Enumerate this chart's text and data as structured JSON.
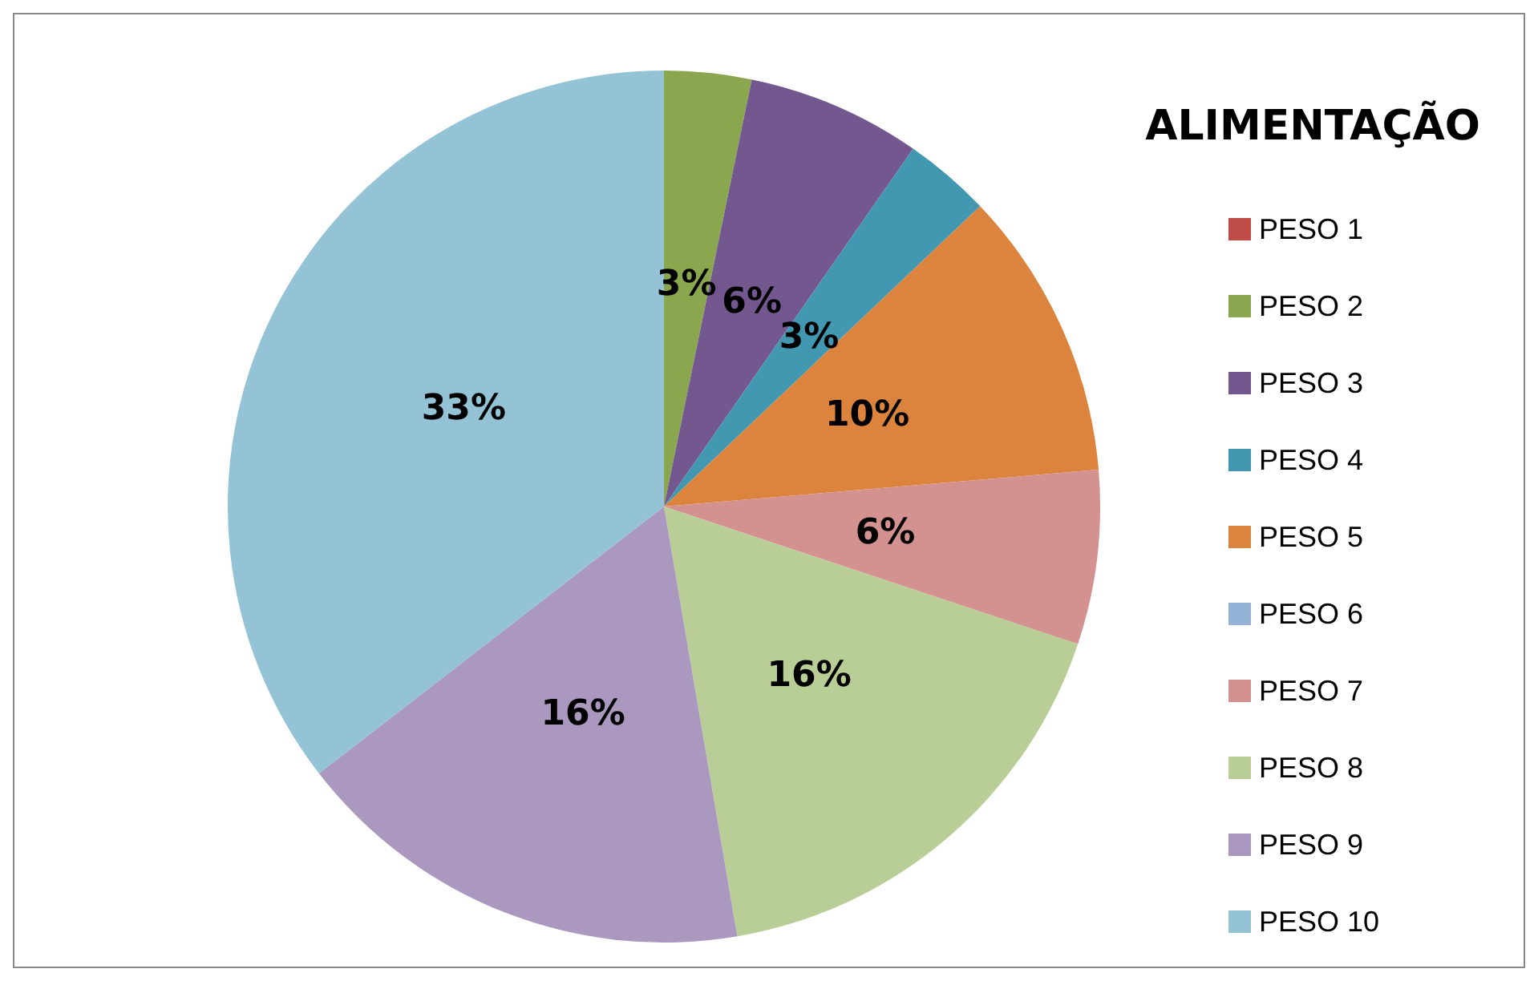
{
  "chart_data": {
    "type": "pie",
    "title": "ALIMENTAÇÃO",
    "categories": [
      "PESO 1",
      "PESO 2",
      "PESO 3",
      "PESO 4",
      "PESO 5",
      "PESO 6",
      "PESO 7",
      "PESO 8",
      "PESO 9",
      "PESO 10"
    ],
    "values": [
      0,
      3,
      6,
      3,
      10,
      0,
      6,
      16,
      16,
      33
    ],
    "value_labels": [
      null,
      "3%",
      "6%",
      "3%",
      "10%",
      null,
      "6%",
      "16%",
      "16%",
      "33%"
    ],
    "colors": [
      "#be4b48",
      "#8aa64f",
      "#735890",
      "#4298b0",
      "#dc843e",
      "#95b3d7",
      "#d39190",
      "#b9cd96",
      "#aa98bf",
      "#93c3d4"
    ],
    "legend": "right"
  }
}
